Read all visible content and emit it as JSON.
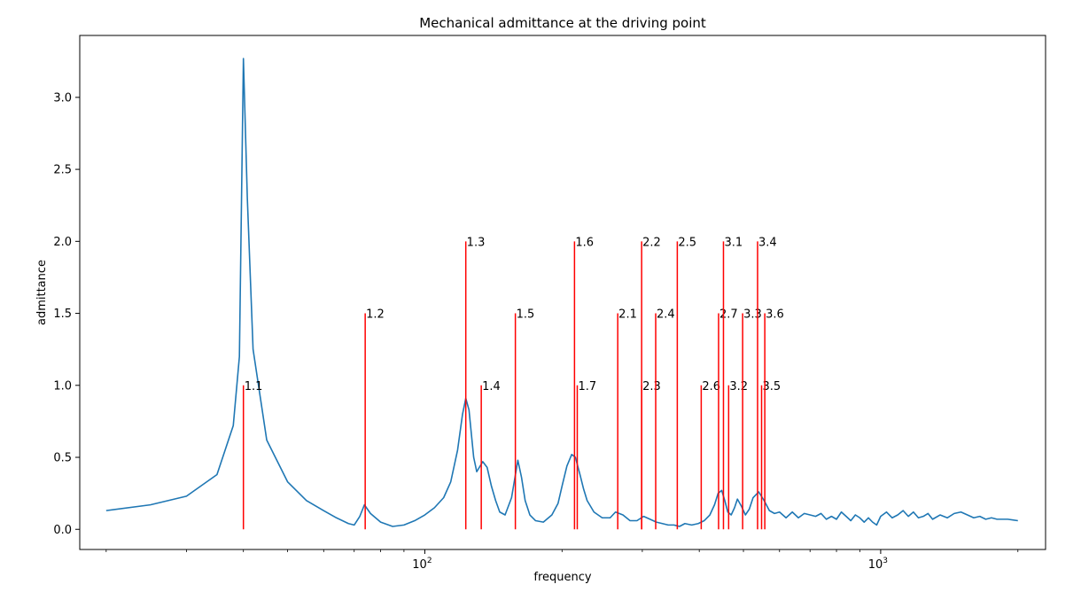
{
  "chart_data": {
    "type": "line",
    "title": "Mechanical admittance at the driving point",
    "xlabel": "frequency",
    "ylabel": "admittance",
    "xscale": "log",
    "xlim": [
      17.5,
      2300
    ],
    "ylim": [
      -0.14,
      3.43
    ],
    "x_ticks": [
      {
        "value": 100,
        "base": "10",
        "exp": "2"
      },
      {
        "value": 1000,
        "base": "10",
        "exp": "3"
      }
    ],
    "y_ticks": [
      {
        "value": 0.0,
        "label": "0.0"
      },
      {
        "value": 0.5,
        "label": "0.5"
      },
      {
        "value": 1.0,
        "label": "1.0"
      },
      {
        "value": 1.5,
        "label": "1.5"
      },
      {
        "value": 2.0,
        "label": "2.0"
      },
      {
        "value": 2.5,
        "label": "2.5"
      },
      {
        "value": 3.0,
        "label": "3.0"
      }
    ],
    "series": [
      {
        "name": "admittance",
        "color": "#1f77b4",
        "x": [
          20,
          25,
          30,
          35,
          38,
          39.2,
          40,
          40.8,
          42,
          45,
          50,
          55,
          60,
          64,
          68,
          70,
          72,
          73.7,
          76,
          80,
          85,
          90,
          95,
          100,
          105,
          110,
          114,
          118,
          121,
          123,
          125,
          128,
          130,
          134,
          137,
          140,
          143,
          146,
          150,
          155,
          160,
          163,
          166,
          170,
          175,
          182,
          190,
          196,
          200,
          205,
          210,
          214,
          219,
          223,
          227,
          235,
          245,
          255,
          262,
          272,
          282,
          292,
          302,
          312,
          322,
          332,
          342,
          352,
          362,
          372,
          385,
          398,
          410,
          422,
          432,
          440,
          448,
          455,
          462,
          470,
          478,
          485,
          495,
          505,
          515,
          525,
          540,
          555,
          570,
          585,
          600,
          620,
          640,
          660,
          680,
          700,
          720,
          740,
          760,
          780,
          800,
          820,
          840,
          860,
          880,
          900,
          920,
          940,
          960,
          980,
          1000,
          1030,
          1060,
          1090,
          1120,
          1150,
          1180,
          1210,
          1240,
          1270,
          1300,
          1350,
          1400,
          1450,
          1500,
          1550,
          1600,
          1650,
          1700,
          1750,
          1800,
          1900,
          2000
        ],
        "values": [
          0.13,
          0.17,
          0.23,
          0.38,
          0.72,
          1.2,
          3.27,
          2.3,
          1.25,
          0.62,
          0.33,
          0.2,
          0.13,
          0.08,
          0.04,
          0.03,
          0.09,
          0.17,
          0.11,
          0.05,
          0.02,
          0.03,
          0.06,
          0.1,
          0.15,
          0.22,
          0.33,
          0.55,
          0.8,
          0.91,
          0.83,
          0.5,
          0.4,
          0.47,
          0.43,
          0.3,
          0.2,
          0.12,
          0.1,
          0.22,
          0.48,
          0.36,
          0.2,
          0.1,
          0.06,
          0.05,
          0.1,
          0.18,
          0.3,
          0.44,
          0.52,
          0.5,
          0.38,
          0.28,
          0.2,
          0.12,
          0.08,
          0.08,
          0.12,
          0.1,
          0.06,
          0.06,
          0.09,
          0.07,
          0.05,
          0.04,
          0.03,
          0.03,
          0.02,
          0.04,
          0.03,
          0.04,
          0.06,
          0.1,
          0.17,
          0.25,
          0.27,
          0.2,
          0.12,
          0.1,
          0.15,
          0.21,
          0.16,
          0.1,
          0.14,
          0.22,
          0.26,
          0.2,
          0.13,
          0.11,
          0.12,
          0.08,
          0.12,
          0.08,
          0.11,
          0.1,
          0.09,
          0.11,
          0.07,
          0.09,
          0.07,
          0.12,
          0.09,
          0.06,
          0.1,
          0.08,
          0.05,
          0.08,
          0.05,
          0.03,
          0.09,
          0.12,
          0.08,
          0.1,
          0.13,
          0.09,
          0.12,
          0.08,
          0.09,
          0.11,
          0.07,
          0.1,
          0.08,
          0.11,
          0.12,
          0.1,
          0.08,
          0.09,
          0.07,
          0.08,
          0.07,
          0.07,
          0.06
        ]
      }
    ],
    "mode_lines": {
      "color": "#ff0000",
      "items": [
        {
          "label": "1.1",
          "x": 40.0,
          "height": 1.0
        },
        {
          "label": "1.2",
          "x": 74.0,
          "height": 1.5
        },
        {
          "label": "1.3",
          "x": 123.0,
          "height": 2.0
        },
        {
          "label": "1.4",
          "x": 133.0,
          "height": 1.0
        },
        {
          "label": "1.5",
          "x": 158.0,
          "height": 1.5
        },
        {
          "label": "1.6",
          "x": 213.0,
          "height": 2.0
        },
        {
          "label": "1.7",
          "x": 216.0,
          "height": 1.0
        },
        {
          "label": "2.1",
          "x": 265.0,
          "height": 1.5
        },
        {
          "label": "2.2",
          "x": 299.0,
          "height": 2.0
        },
        {
          "label": "2.3",
          "x": 299.0,
          "height": 1.0
        },
        {
          "label": "2.4",
          "x": 321.0,
          "height": 1.5
        },
        {
          "label": "2.5",
          "x": 358.0,
          "height": 2.0
        },
        {
          "label": "2.6",
          "x": 404.0,
          "height": 1.0
        },
        {
          "label": "2.7",
          "x": 441.0,
          "height": 1.5
        },
        {
          "label": "3.1",
          "x": 452.0,
          "height": 2.0
        },
        {
          "label": "3.2",
          "x": 464.0,
          "height": 1.0
        },
        {
          "label": "3.3",
          "x": 498.0,
          "height": 1.5
        },
        {
          "label": "3.4",
          "x": 537.0,
          "height": 2.0
        },
        {
          "label": "3.5",
          "x": 548.0,
          "height": 1.0
        },
        {
          "label": "3.6",
          "x": 557.0,
          "height": 1.5
        }
      ]
    }
  }
}
